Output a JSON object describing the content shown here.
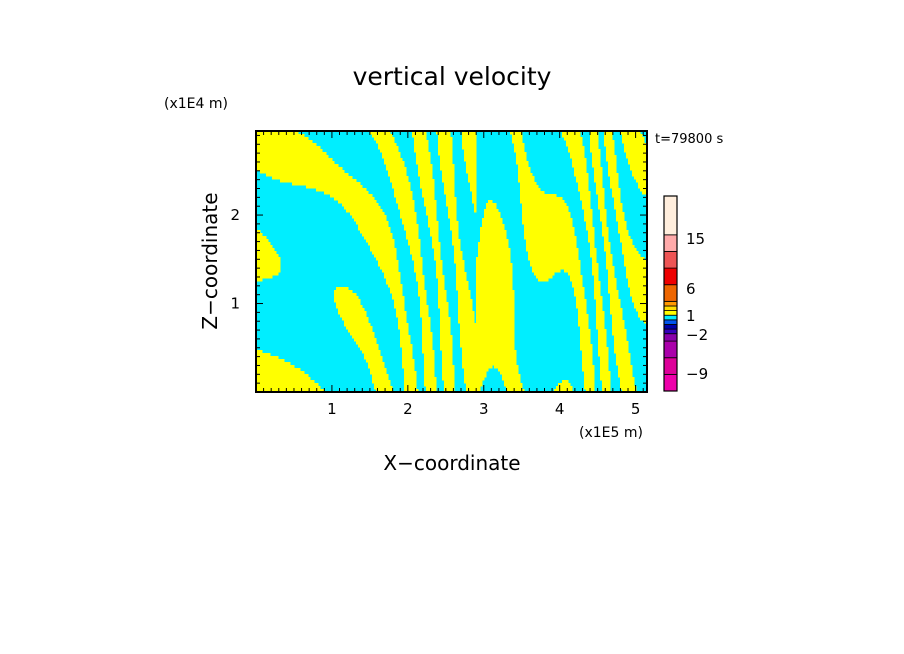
{
  "chart_data": {
    "type": "heatmap",
    "title": "vertical velocity",
    "xlabel": "X−coordinate",
    "ylabel": "Z−coordinate",
    "x_unit": "(x1E5 m)",
    "y_unit": "(x1E4 m)",
    "time_label": "t=79800 s",
    "xlim": [
      0,
      5.15
    ],
    "ylim": [
      0,
      2.95
    ],
    "x_ticks": [
      1,
      2,
      3,
      4,
      5
    ],
    "y_ticks": [
      1,
      2
    ],
    "x_tick_labels": [
      "1",
      "2",
      "3",
      "4",
      "5"
    ],
    "y_tick_labels": [
      "1",
      "2"
    ],
    "field_colors": {
      "positive": "#ffff00",
      "negative": "#00eeff"
    },
    "colorbar": {
      "tick_labels": [
        "15",
        "6",
        "1",
        "−2",
        "−9"
      ],
      "tick_values": [
        15,
        6,
        1,
        -2,
        -9
      ],
      "bins": [
        {
          "color": "#ee00aa"
        },
        {
          "color": "#dd0099"
        },
        {
          "color": "#aa00aa"
        },
        {
          "color": "#8800aa"
        },
        {
          "color": "#3300bb"
        },
        {
          "color": "#0000aa"
        },
        {
          "color": "#0055ee"
        },
        {
          "color": "#00eeff"
        },
        {
          "color": "#ffff00"
        },
        {
          "color": "#ffdd00"
        },
        {
          "color": "#ff9900"
        },
        {
          "color": "#ee6600"
        },
        {
          "color": "#ee0000"
        },
        {
          "color": "#ee5555"
        },
        {
          "color": "#ffaaaa"
        },
        {
          "color": "#ffeedd"
        }
      ]
    }
  }
}
